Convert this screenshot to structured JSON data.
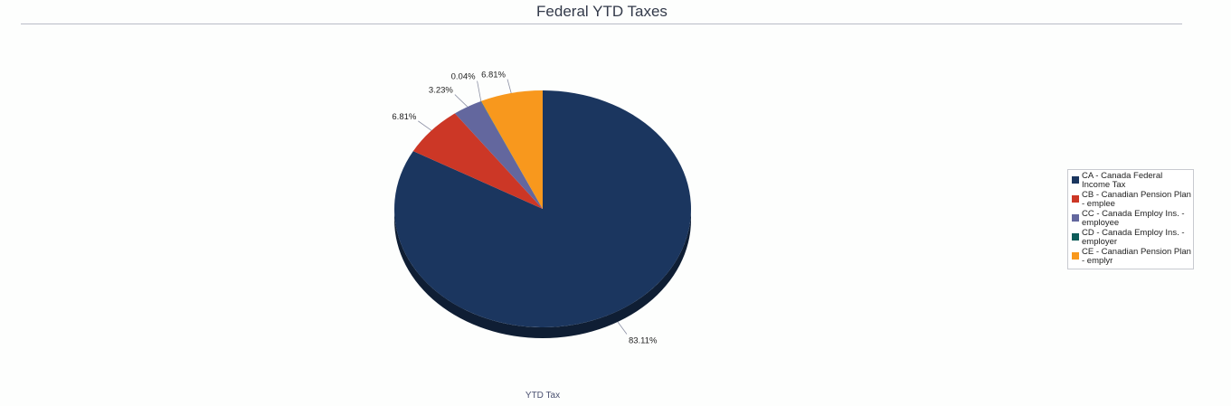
{
  "chart_data": {
    "type": "pie",
    "title": "Federal YTD Taxes",
    "xlabel": "YTD Tax",
    "categories": [
      "CA - Canada Federal Income Tax",
      "CB - Canadian Pension Plan - emplee",
      "CC - Canada Employ Ins. - employee",
      "CD - Canada Employ Ins. - employer",
      "CE - Canadian Pension Plan - emplyr"
    ],
    "values": [
      83.11,
      6.81,
      3.23,
      0.04,
      6.81
    ],
    "data_labels": [
      "83.11%",
      "6.81%",
      "3.23%",
      "0.04%",
      "6.81%"
    ],
    "colors": [
      "#1b365f",
      "#cc3726",
      "#63679e",
      "#0d5c5a",
      "#f8981d"
    ],
    "legend_position": "right"
  }
}
